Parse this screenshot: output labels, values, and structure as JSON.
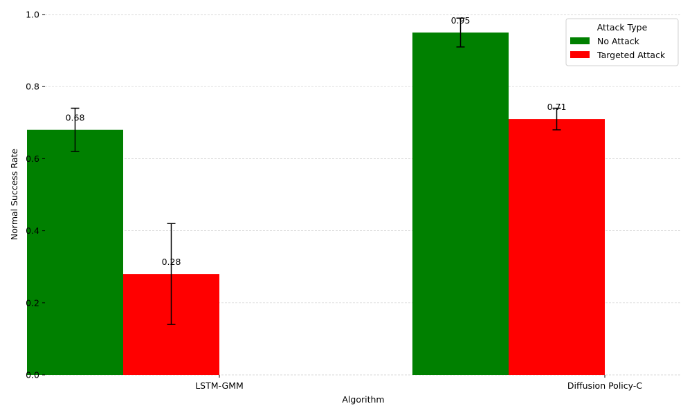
{
  "chart_data": {
    "type": "bar",
    "categories": [
      "LSTM-GMM",
      "Diffusion Policy-C"
    ],
    "series": [
      {
        "name": "No Attack",
        "color": "#008000",
        "values": [
          0.68,
          0.95
        ],
        "error": [
          0.06,
          0.04
        ],
        "labels": [
          "0.68",
          "0.95"
        ]
      },
      {
        "name": "Targeted Attack",
        "color": "#ff0000",
        "values": [
          0.28,
          0.71
        ],
        "error": [
          0.14,
          0.03
        ],
        "labels": [
          "0.28",
          "0.71"
        ]
      }
    ],
    "xlabel": "Algorithm",
    "ylabel": "Normal Success Rate",
    "ylim": [
      0,
      1.0
    ],
    "yticks": [
      "0.0",
      "0.2",
      "0.4",
      "0.6",
      "0.8",
      "1.0"
    ],
    "legend": {
      "title": "Attack Type",
      "placement": "top-right"
    },
    "grid": true
  }
}
